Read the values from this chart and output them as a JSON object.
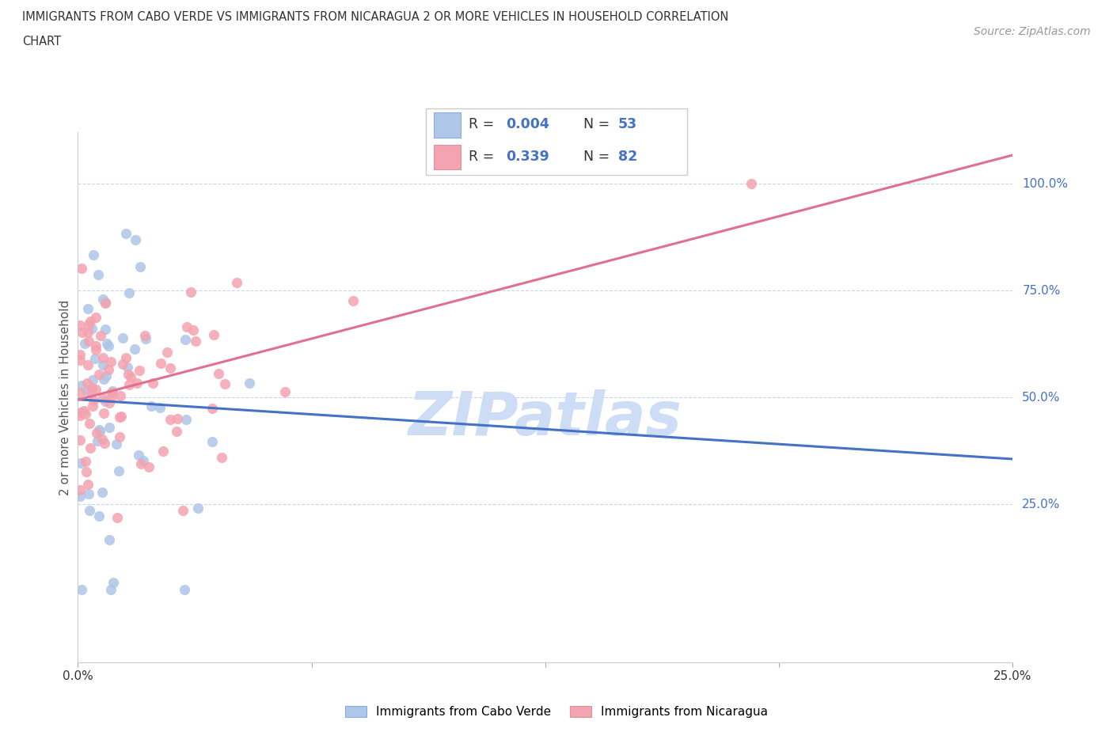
{
  "title_line1": "IMMIGRANTS FROM CABO VERDE VS IMMIGRANTS FROM NICARAGUA 2 OR MORE VEHICLES IN HOUSEHOLD CORRELATION",
  "title_line2": "CHART",
  "source": "Source: ZipAtlas.com",
  "ylabel": "2 or more Vehicles in Household",
  "xlim": [
    0.0,
    25.0
  ],
  "ylim": [
    -12.0,
    112.0
  ],
  "gridline_y": [
    25.0,
    50.0,
    75.0,
    100.0
  ],
  "cabo_verde_color": "#aec6e8",
  "nicaragua_color": "#f4a3b0",
  "cabo_verde_line_color": "#4472c4",
  "nicaragua_line_color": "#e07090",
  "cabo_verde_R": 0.004,
  "cabo_verde_N": 53,
  "nicaragua_R": 0.339,
  "nicaragua_N": 82,
  "watermark_color": "#ccddf5",
  "legend_label1": "Immigrants from Cabo Verde",
  "legend_label2": "Immigrants from Nicaragua"
}
